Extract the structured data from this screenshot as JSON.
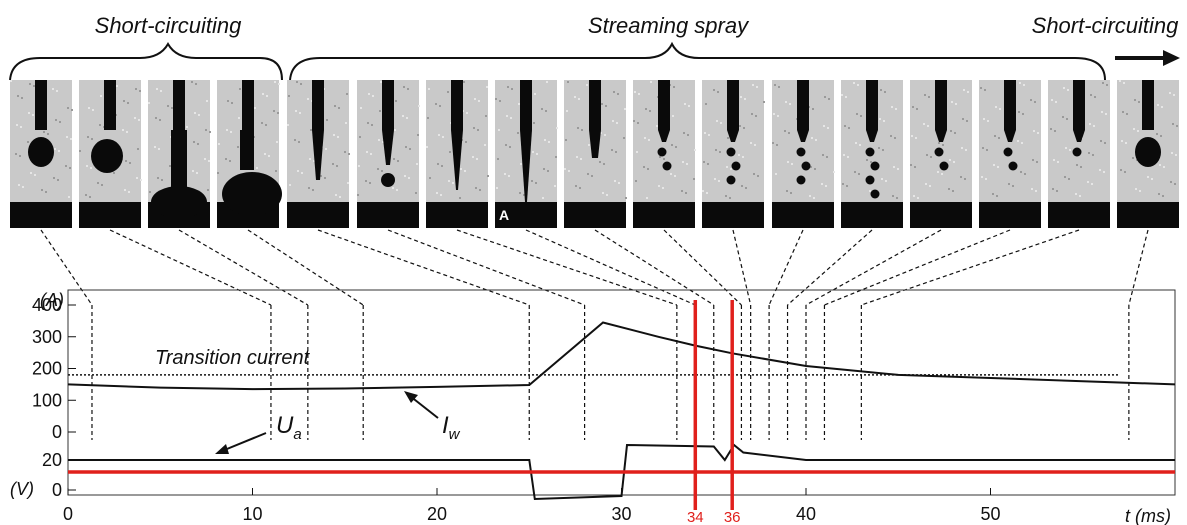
{
  "phases": {
    "left": "Short-circuiting",
    "middle": "Streaming spray",
    "right": "Short-circuiting"
  },
  "frames": [
    {
      "drop": "bulb"
    },
    {
      "drop": "bulb-big"
    },
    {
      "drop": "bridge"
    },
    {
      "drop": "bridge-wide"
    },
    {
      "drop": "taper"
    },
    {
      "drop": "taper-drop"
    },
    {
      "drop": "thin"
    },
    {
      "drop": "stream",
      "label": "A"
    },
    {
      "drop": "short-tip"
    },
    {
      "drop": "drops2"
    },
    {
      "drop": "drops3"
    },
    {
      "drop": "drops3b"
    },
    {
      "drop": "drops4"
    },
    {
      "drop": "drops2b"
    },
    {
      "drop": "drops2c"
    },
    {
      "drop": "drops1"
    },
    {
      "drop": "bulb-final"
    }
  ],
  "chart_data": {
    "type": "line",
    "x_axis": {
      "label": "t (ms)",
      "range": [
        0,
        60
      ],
      "ticks": [
        0,
        10,
        20,
        30,
        40,
        50
      ]
    },
    "y_current": {
      "unit": "(A)",
      "ticks": [
        400,
        300,
        200,
        100,
        0
      ],
      "range": [
        0,
        450
      ]
    },
    "y_voltage": {
      "unit": "(V)",
      "ticks": [
        20,
        0
      ]
    },
    "current_label": "I",
    "current_sub": "w",
    "voltage_label": "U",
    "voltage_sub": "a",
    "transition_label": "Transition current",
    "transition_value": 180,
    "current_series": {
      "x": [
        0,
        5,
        10,
        15,
        20,
        25,
        29,
        32,
        34,
        36,
        40,
        45,
        50,
        55,
        60
      ],
      "y": [
        150,
        140,
        135,
        137,
        142,
        148,
        345,
        300,
        272,
        248,
        208,
        180,
        170,
        160,
        150
      ]
    },
    "voltage_series": {
      "x": [
        0,
        25,
        25.3,
        30,
        30.3,
        35,
        35.6,
        36.1,
        36.6,
        40,
        50,
        60
      ],
      "y": [
        20,
        20,
        -6,
        -4,
        30,
        29,
        20,
        30,
        25,
        20,
        20,
        20
      ]
    },
    "red_markers": [
      34,
      36
    ],
    "red_marker_labels": [
      "34",
      "36"
    ],
    "red_hline_value": 12,
    "frame_times": [
      1.3,
      11,
      13,
      16,
      25,
      28,
      33,
      34,
      35,
      36.5,
      37,
      38,
      39,
      40,
      41,
      43,
      57.5
    ]
  },
  "colors": {
    "red": "#e0201c",
    "ink": "#111111",
    "frame_bg": "#c9c9c9"
  }
}
